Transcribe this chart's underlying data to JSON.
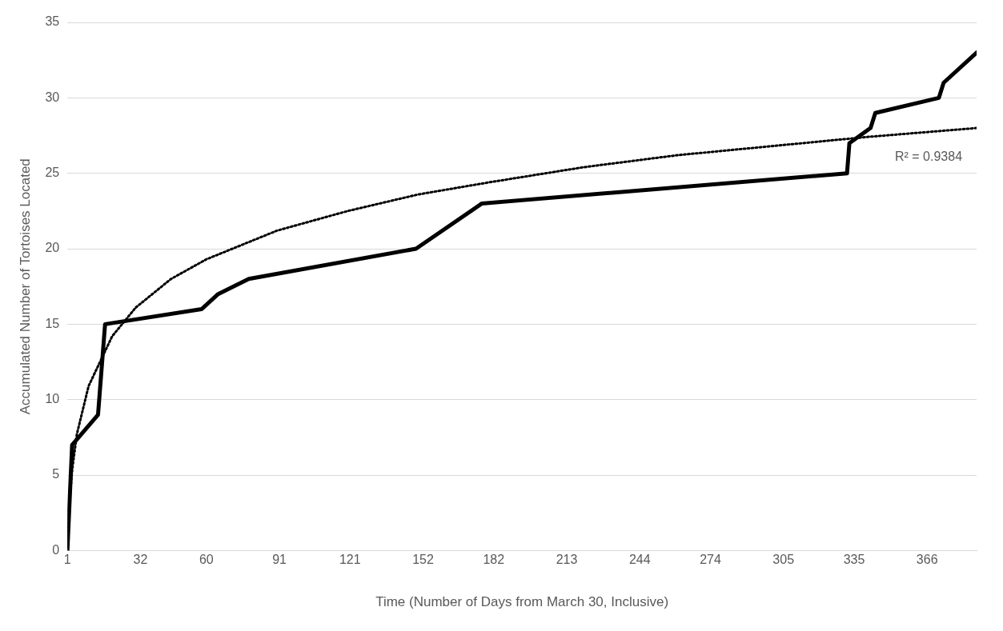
{
  "chart_data": {
    "type": "line",
    "xlabel": "Time (Number of Days from March 30, Inclusive)",
    "ylabel": "Accumulated Number of Tortoises Located",
    "xlim": [
      1,
      387
    ],
    "xticks": [
      1,
      32,
      60,
      91,
      121,
      152,
      182,
      213,
      244,
      274,
      305,
      335,
      366
    ],
    "ylim": [
      0,
      35
    ],
    "yticks": [
      0,
      5,
      10,
      15,
      20,
      25,
      30,
      35
    ],
    "grid": "y",
    "legend": false,
    "marker": "none",
    "series": [
      {
        "type": "line",
        "color": "#000000",
        "line_style": "solid",
        "x": [
          1,
          3,
          14,
          17,
          58,
          65,
          78,
          149,
          177,
          332,
          333,
          342,
          344,
          371,
          373,
          387
        ],
        "values": [
          0,
          7,
          9,
          15,
          16,
          17,
          18,
          20,
          23,
          25,
          27,
          28,
          29,
          30,
          31,
          33
        ]
      },
      {
        "type": "line",
        "color": "#000000",
        "line_style": "dotted",
        "x": [
          1,
          2,
          3,
          5,
          10,
          20,
          30,
          45,
          60,
          90,
          120,
          150,
          180,
          220,
          260,
          300,
          340,
          387
        ],
        "values": [
          0.2,
          3.4,
          5.3,
          7.7,
          10.9,
          14.2,
          16.1,
          18.0,
          19.3,
          21.2,
          22.5,
          23.6,
          24.4,
          25.4,
          26.2,
          26.8,
          27.4,
          28.0
        ]
      }
    ],
    "annotations": [
      "R² = 0.9384"
    ]
  }
}
